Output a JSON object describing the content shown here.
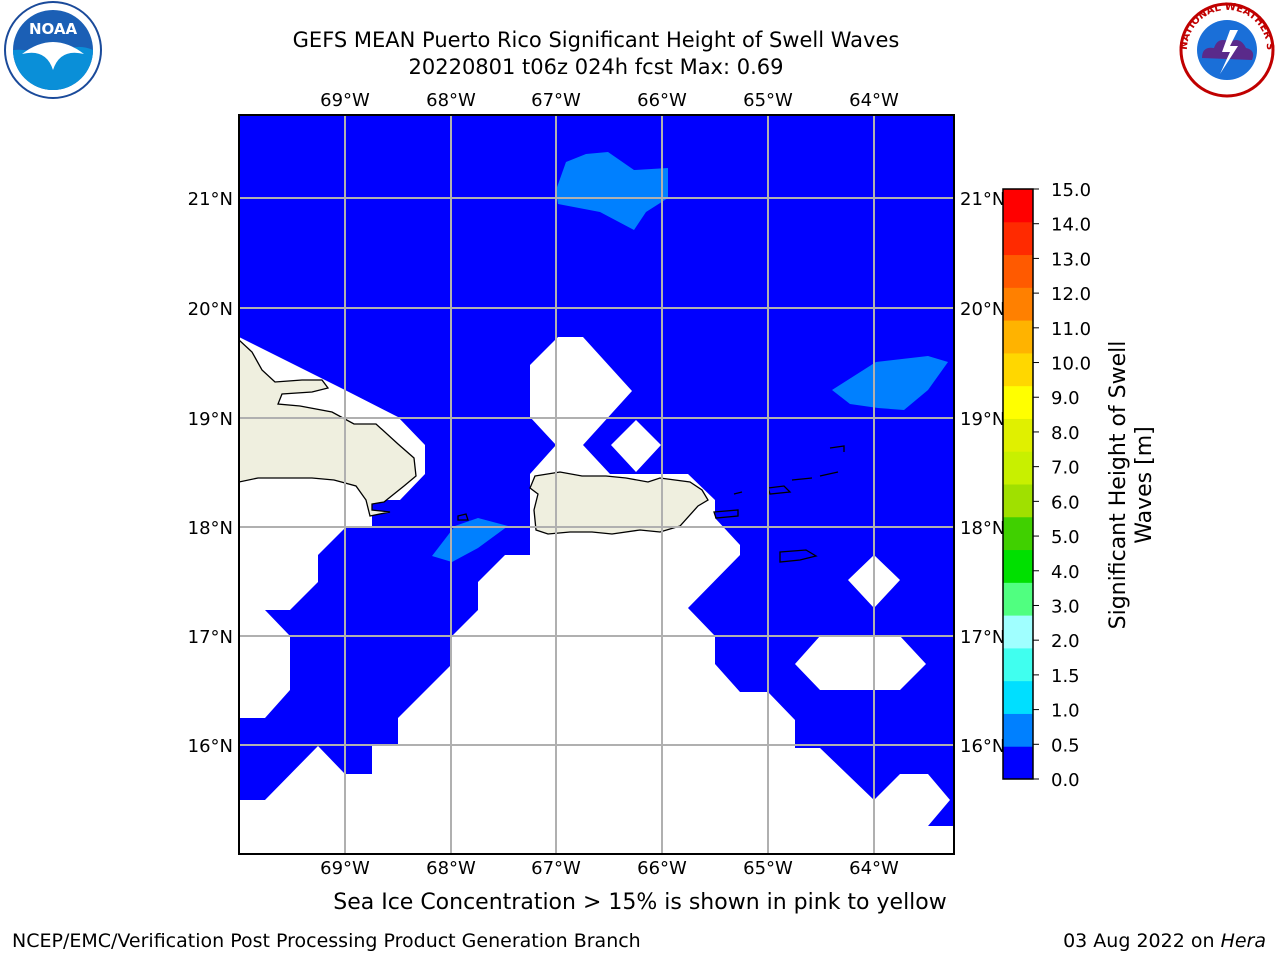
{
  "title": {
    "line1": "GEFS MEAN Puerto Rico Significant Height of Swell Waves",
    "line2": "20220801 t06z 024h fcst   Max: 0.69"
  },
  "map": {
    "lon_labels": [
      "69°W",
      "68°W",
      "67°W",
      "66°W",
      "65°W",
      "64°W"
    ],
    "lat_labels": [
      "21°N",
      "20°N",
      "19°N",
      "18°N",
      "17°N",
      "16°N"
    ],
    "colors": {
      "ocean_low": "#0000ff",
      "ocean_mid": "#0080ff",
      "land": "#efefdf",
      "grid": "#b0b0b0"
    }
  },
  "colorbar": {
    "label_line1": "Significant Height of Swell",
    "label_line2": "Waves [m]",
    "ticks": [
      "0.0",
      "0.5",
      "1.0",
      "1.5",
      "2.0",
      "3.0",
      "4.0",
      "5.0",
      "6.0",
      "7.0",
      "8.0",
      "9.0",
      "10.0",
      "11.0",
      "12.0",
      "13.0",
      "14.0",
      "15.0"
    ],
    "colors": [
      "#0000ff",
      "#0080ff",
      "#00dfff",
      "#40ffef",
      "#a0ffff",
      "#50ff80",
      "#00e000",
      "#40d000",
      "#a0e000",
      "#c8f000",
      "#e0f000",
      "#ffff00",
      "#ffd700",
      "#ffb300",
      "#ff8000",
      "#ff5a00",
      "#ff2a00",
      "#ff0000"
    ]
  },
  "notes": {
    "ice": "Sea Ice Concentration > 15% is shown in pink to yellow",
    "left": "NCEP/EMC/Verification Post Processing Product Generation Branch",
    "right_date": "03 Aug 2022 on ",
    "right_machine": "Hera"
  },
  "logos": {
    "noaa_text": "NOAA",
    "nws_text": "NATIONAL WEATHER SERVICE"
  }
}
